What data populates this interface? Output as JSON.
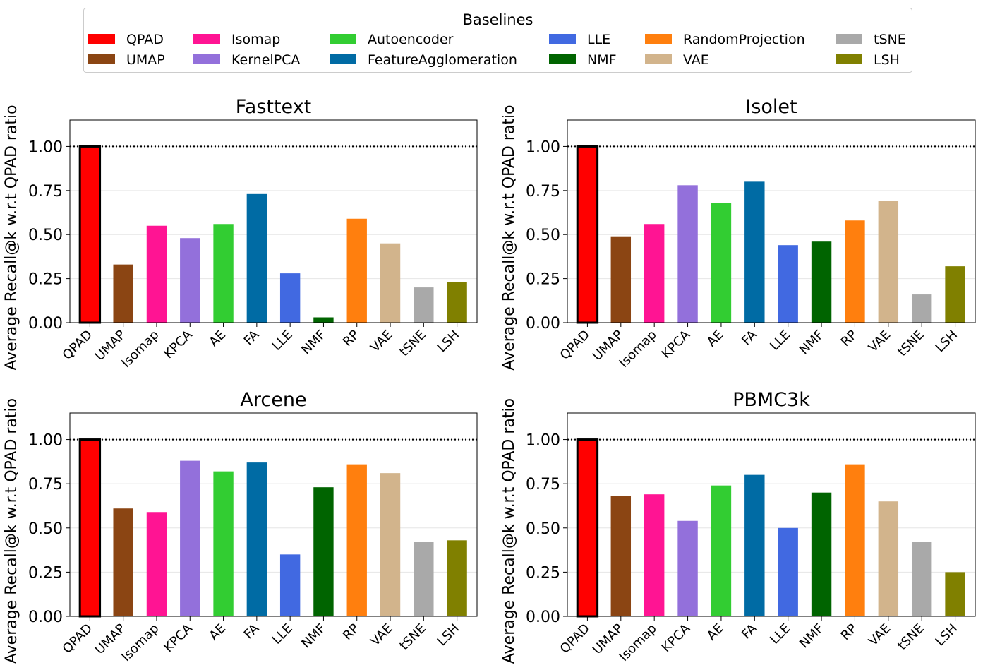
{
  "legend": {
    "title": "Baselines",
    "items": [
      {
        "label": "QPAD",
        "color": "#ff0000"
      },
      {
        "label": "UMAP",
        "color": "#8b4513"
      },
      {
        "label": "Isomap",
        "color": "#ff1493"
      },
      {
        "label": "KernelPCA",
        "color": "#9370db"
      },
      {
        "label": "Autoencoder",
        "color": "#32cd32"
      },
      {
        "label": "FeatureAgglomeration",
        "color": "#006ba4"
      },
      {
        "label": "LLE",
        "color": "#4169e1"
      },
      {
        "label": "NMF",
        "color": "#006400"
      },
      {
        "label": "RandomProjection",
        "color": "#ff7f0e"
      },
      {
        "label": "VAE",
        "color": "#d2b48c"
      },
      {
        "label": "tSNE",
        "color": "#a9a9a9"
      },
      {
        "label": "LSH",
        "color": "#808000"
      }
    ]
  },
  "chart_data": [
    {
      "type": "bar",
      "title": "Fasttext",
      "categories": [
        "QPAD",
        "UMAP",
        "Isomap",
        "KPCA",
        "AE",
        "FA",
        "LLE",
        "NMF",
        "RP",
        "VAE",
        "tSNE",
        "LSH"
      ],
      "values": [
        1.0,
        0.33,
        0.55,
        0.48,
        0.56,
        0.73,
        0.28,
        0.03,
        0.59,
        0.45,
        0.2,
        0.23
      ],
      "xlabel": "",
      "ylabel": "Average Recall@k w.r.t QPAD ratio",
      "ylim": [
        0,
        1.15
      ],
      "yticks": [
        "0.00",
        "0.25",
        "0.50",
        "0.75",
        "1.00"
      ],
      "reference_line": 1.0
    },
    {
      "type": "bar",
      "title": "Isolet",
      "categories": [
        "QPAD",
        "UMAP",
        "Isomap",
        "KPCA",
        "AE",
        "FA",
        "LLE",
        "NMF",
        "RP",
        "VAE",
        "tSNE",
        "LSH"
      ],
      "values": [
        1.0,
        0.49,
        0.56,
        0.78,
        0.68,
        0.8,
        0.44,
        0.46,
        0.58,
        0.69,
        0.16,
        0.32
      ],
      "xlabel": "",
      "ylabel": "Average Recall@k w.r.t QPAD ratio",
      "ylim": [
        0,
        1.15
      ],
      "yticks": [
        "0.00",
        "0.25",
        "0.50",
        "0.75",
        "1.00"
      ],
      "reference_line": 1.0
    },
    {
      "type": "bar",
      "title": "Arcene",
      "categories": [
        "QPAD",
        "UMAP",
        "Isomap",
        "KPCA",
        "AE",
        "FA",
        "LLE",
        "NMF",
        "RP",
        "VAE",
        "tSNE",
        "LSH"
      ],
      "values": [
        1.0,
        0.61,
        0.59,
        0.88,
        0.82,
        0.87,
        0.35,
        0.73,
        0.86,
        0.81,
        0.42,
        0.43
      ],
      "xlabel": "",
      "ylabel": "Average Recall@k w.r.t QPAD ratio",
      "ylim": [
        0,
        1.15
      ],
      "yticks": [
        "0.00",
        "0.25",
        "0.50",
        "0.75",
        "1.00"
      ],
      "reference_line": 1.0
    },
    {
      "type": "bar",
      "title": "PBMC3k",
      "categories": [
        "QPAD",
        "UMAP",
        "Isomap",
        "KPCA",
        "AE",
        "FA",
        "LLE",
        "NMF",
        "RP",
        "VAE",
        "tSNE",
        "LSH"
      ],
      "values": [
        1.0,
        0.68,
        0.69,
        0.54,
        0.74,
        0.8,
        0.5,
        0.7,
        0.86,
        0.65,
        0.42,
        0.25
      ],
      "xlabel": "",
      "ylabel": "Average Recall@k w.r.t QPAD ratio",
      "ylim": [
        0,
        1.15
      ],
      "yticks": [
        "0.00",
        "0.25",
        "0.50",
        "0.75",
        "1.00"
      ],
      "reference_line": 1.0
    }
  ]
}
